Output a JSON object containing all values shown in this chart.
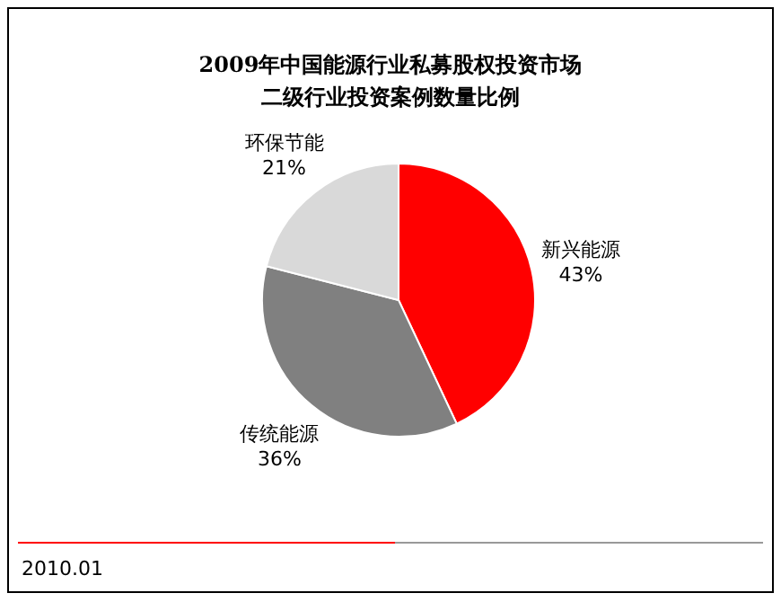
{
  "chart_data": {
    "type": "pie",
    "title": "2009年中国能源行业私募股权投资市场",
    "subtitle": "二级行业投资案例数量比例",
    "categories": [
      "新兴能源",
      "传统能源",
      "环保节能"
    ],
    "values": [
      43,
      36,
      21
    ],
    "value_labels": [
      "43%",
      "36%",
      "21%"
    ],
    "colors": [
      "#ff0000",
      "#808080",
      "#d9d9d9"
    ],
    "annotations": [
      "2010.01"
    ]
  }
}
